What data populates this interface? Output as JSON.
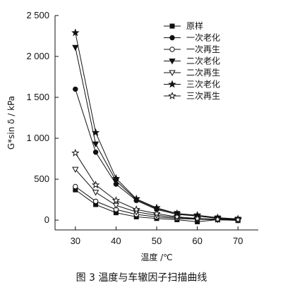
{
  "chart_data": {
    "type": "line",
    "caption": "图 3  温度与车辙因子扫描曲线",
    "xlabel": "温度 /℃",
    "ylabel": "G*sin δ / kPa",
    "x": [
      30,
      35,
      40,
      45,
      50,
      55,
      60,
      65,
      70
    ],
    "xlim": [
      25,
      75
    ],
    "ylim": [
      -120,
      2500
    ],
    "xticks": [
      "30",
      "40",
      "50",
      "60",
      "70"
    ],
    "yticks": [
      "0",
      "500",
      "1 000",
      "1 500",
      "2 000",
      "2 500"
    ],
    "ytick_values": [
      0,
      500,
      1000,
      1500,
      2000,
      2500
    ],
    "legend_position": "top-right",
    "series": [
      {
        "name": "原样",
        "marker": "filled-square",
        "values": [
          370,
          190,
          90,
          40,
          20,
          5,
          -20,
          5,
          -5
        ]
      },
      {
        "name": "一次老化",
        "marker": "filled-circle",
        "values": [
          1600,
          830,
          440,
          240,
          130,
          70,
          50,
          20,
          5
        ]
      },
      {
        "name": "一次再生",
        "marker": "open-circle",
        "values": [
          410,
          230,
          130,
          70,
          40,
          20,
          10,
          5,
          0
        ]
      },
      {
        "name": "二次老化",
        "marker": "filled-triangle-down",
        "values": [
          2110,
          930,
          480,
          250,
          140,
          80,
          50,
          25,
          10
        ]
      },
      {
        "name": "二次再生",
        "marker": "open-triangle-down",
        "values": [
          620,
          340,
          180,
          100,
          60,
          30,
          15,
          5,
          0
        ]
      },
      {
        "name": "三次老化",
        "marker": "filled-star",
        "values": [
          2290,
          1070,
          510,
          260,
          150,
          80,
          60,
          30,
          15
        ]
      },
      {
        "name": "三次再生",
        "marker": "open-star",
        "values": [
          820,
          430,
          240,
          130,
          80,
          40,
          20,
          10,
          5
        ]
      }
    ]
  }
}
